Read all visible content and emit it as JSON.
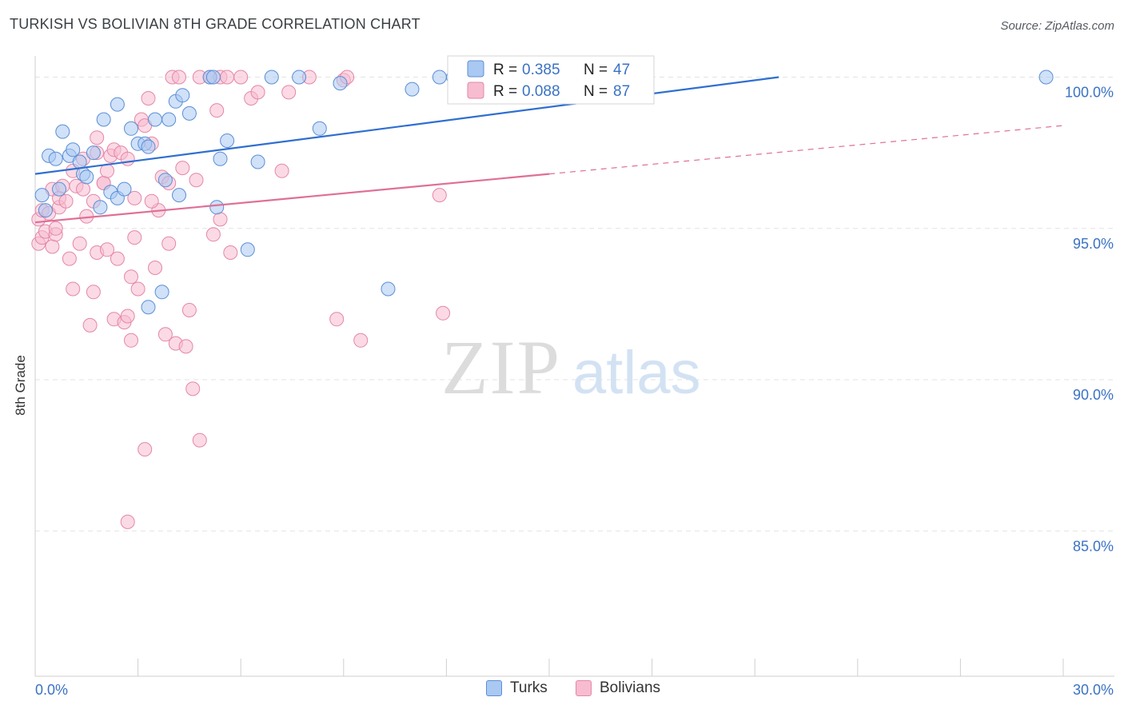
{
  "title": "TURKISH VS BOLIVIAN 8TH GRADE CORRELATION CHART",
  "source": "Source: ZipAtlas.com",
  "watermark": {
    "zip": "ZIP",
    "atlas": "atlas"
  },
  "colors": {
    "turks_fill": "#a9c8f2",
    "turks_stroke": "#5b8fd6",
    "turks_line": "#2f6fd0",
    "bolivians_fill": "#f7bcd0",
    "bolivians_stroke": "#e487a8",
    "bolivians_line": "#df6f97",
    "axis_text": "#3a72c4",
    "grid": "#e3e3e3"
  },
  "chart_data": {
    "type": "scatter",
    "title": "TURKISH VS BOLIVIAN 8TH GRADE CORRELATION CHART",
    "xlabel": "",
    "ylabel": "8th Grade",
    "xlim": [
      0,
      30
    ],
    "ylim": [
      80.2,
      100.7
    ],
    "x_tick_labels": [
      {
        "value": 0,
        "label": "0.0%"
      },
      {
        "value": 30,
        "label": "30.0%"
      }
    ],
    "y_ticks": [
      {
        "value": 100,
        "label": "100.0%"
      },
      {
        "value": 95,
        "label": "95.0%"
      },
      {
        "value": 90,
        "label": "90.0%"
      },
      {
        "value": 85,
        "label": "85.0%"
      }
    ],
    "x_minor_ticks": [
      3,
      6,
      9,
      12,
      15,
      18,
      21,
      24,
      27,
      30
    ],
    "grid": true,
    "legend_position": "top-center",
    "series": [
      {
        "name": "Turks",
        "R": "0.385",
        "N": "47",
        "trend": {
          "x": [
            0,
            21.7
          ],
          "y": [
            96.8,
            100.0
          ],
          "dashed_extension": false
        },
        "points": [
          [
            0.2,
            96.1
          ],
          [
            0.3,
            95.6
          ],
          [
            0.4,
            97.4
          ],
          [
            0.6,
            97.3
          ],
          [
            0.7,
            96.3
          ],
          [
            0.8,
            98.2
          ],
          [
            1.0,
            97.4
          ],
          [
            1.1,
            97.6
          ],
          [
            1.3,
            97.2
          ],
          [
            1.4,
            96.8
          ],
          [
            1.5,
            96.7
          ],
          [
            1.7,
            97.5
          ],
          [
            1.9,
            95.7
          ],
          [
            2.0,
            98.6
          ],
          [
            2.2,
            96.2
          ],
          [
            2.4,
            96.0
          ],
          [
            2.4,
            99.1
          ],
          [
            2.6,
            96.3
          ],
          [
            2.8,
            98.3
          ],
          [
            3.0,
            97.8
          ],
          [
            3.2,
            97.8
          ],
          [
            3.3,
            92.4
          ],
          [
            3.3,
            97.7
          ],
          [
            3.5,
            98.6
          ],
          [
            3.7,
            92.9
          ],
          [
            3.8,
            96.6
          ],
          [
            3.9,
            98.6
          ],
          [
            4.1,
            99.2
          ],
          [
            4.2,
            96.1
          ],
          [
            4.3,
            99.4
          ],
          [
            4.5,
            98.8
          ],
          [
            5.1,
            100.0
          ],
          [
            5.2,
            100.0
          ],
          [
            5.3,
            95.7
          ],
          [
            5.4,
            97.3
          ],
          [
            5.6,
            97.9
          ],
          [
            6.2,
            94.3
          ],
          [
            6.5,
            97.2
          ],
          [
            6.9,
            100.0
          ],
          [
            7.7,
            100.0
          ],
          [
            8.3,
            98.3
          ],
          [
            8.9,
            99.8
          ],
          [
            10.3,
            93.0
          ],
          [
            11.0,
            99.6
          ],
          [
            11.8,
            100.0
          ],
          [
            12.2,
            100.0
          ],
          [
            29.5,
            100.0
          ]
        ]
      },
      {
        "name": "Bolivians",
        "R": "0.088",
        "N": "87",
        "trend": {
          "x": [
            0,
            15.0
          ],
          "y": [
            95.2,
            96.8
          ],
          "dashed_extension": true,
          "dash_to": [
            30,
            98.4
          ]
        },
        "points": [
          [
            0.1,
            95.3
          ],
          [
            0.1,
            94.5
          ],
          [
            0.2,
            94.7
          ],
          [
            0.2,
            95.6
          ],
          [
            0.3,
            94.9
          ],
          [
            0.4,
            95.5
          ],
          [
            0.5,
            94.4
          ],
          [
            0.5,
            96.3
          ],
          [
            0.6,
            94.8
          ],
          [
            0.6,
            95.0
          ],
          [
            0.7,
            95.7
          ],
          [
            0.7,
            96.0
          ],
          [
            0.8,
            96.4
          ],
          [
            0.9,
            95.9
          ],
          [
            1.0,
            94.0
          ],
          [
            1.1,
            96.9
          ],
          [
            1.1,
            93.0
          ],
          [
            1.2,
            96.4
          ],
          [
            1.3,
            94.5
          ],
          [
            1.4,
            96.3
          ],
          [
            1.4,
            97.3
          ],
          [
            1.5,
            95.4
          ],
          [
            1.6,
            91.8
          ],
          [
            1.7,
            95.9
          ],
          [
            1.7,
            92.9
          ],
          [
            1.8,
            97.5
          ],
          [
            1.8,
            98.0
          ],
          [
            1.8,
            94.2
          ],
          [
            2.0,
            96.5
          ],
          [
            2.0,
            96.5
          ],
          [
            2.1,
            94.3
          ],
          [
            2.1,
            96.9
          ],
          [
            2.2,
            97.4
          ],
          [
            2.3,
            97.6
          ],
          [
            2.3,
            92.0
          ],
          [
            2.4,
            94.0
          ],
          [
            2.5,
            97.5
          ],
          [
            2.6,
            91.9
          ],
          [
            2.7,
            92.1
          ],
          [
            2.7,
            97.3
          ],
          [
            2.7,
            85.3
          ],
          [
            2.8,
            93.4
          ],
          [
            2.8,
            91.3
          ],
          [
            2.9,
            96.0
          ],
          [
            2.9,
            94.7
          ],
          [
            3.0,
            93.0
          ],
          [
            3.1,
            98.6
          ],
          [
            3.2,
            98.4
          ],
          [
            3.2,
            87.7
          ],
          [
            3.3,
            99.3
          ],
          [
            3.4,
            97.8
          ],
          [
            3.5,
            93.7
          ],
          [
            3.6,
            95.6
          ],
          [
            3.7,
            96.7
          ],
          [
            3.8,
            91.5
          ],
          [
            3.9,
            94.5
          ],
          [
            3.9,
            96.5
          ],
          [
            4.0,
            100.0
          ],
          [
            4.1,
            91.2
          ],
          [
            4.2,
            100.0
          ],
          [
            4.3,
            97.0
          ],
          [
            4.4,
            91.1
          ],
          [
            4.5,
            92.3
          ],
          [
            4.6,
            89.7
          ],
          [
            4.7,
            96.6
          ],
          [
            4.8,
            100.0
          ],
          [
            4.8,
            88.0
          ],
          [
            5.1,
            100.0
          ],
          [
            5.3,
            98.9
          ],
          [
            5.4,
            100.0
          ],
          [
            5.4,
            95.3
          ],
          [
            5.6,
            100.0
          ],
          [
            5.7,
            94.2
          ],
          [
            6.0,
            100.0
          ],
          [
            6.3,
            99.3
          ],
          [
            6.5,
            99.5
          ],
          [
            7.2,
            96.9
          ],
          [
            7.4,
            99.5
          ],
          [
            8.0,
            100.0
          ],
          [
            8.8,
            92.0
          ],
          [
            9.0,
            99.9
          ],
          [
            9.1,
            100.0
          ],
          [
            9.5,
            91.3
          ],
          [
            11.8,
            96.1
          ],
          [
            11.9,
            92.2
          ],
          [
            5.2,
            94.8
          ],
          [
            3.4,
            95.9
          ]
        ]
      }
    ]
  },
  "legend_box": {
    "rows": [
      {
        "r_label": "R =",
        "r_value": "0.385",
        "n_label": "N =",
        "n_value": "47"
      },
      {
        "r_label": "R =",
        "r_value": "0.088",
        "n_label": "N =",
        "n_value": "87"
      }
    ]
  },
  "bottom_legend": [
    {
      "label": "Turks"
    },
    {
      "label": "Bolivians"
    }
  ]
}
